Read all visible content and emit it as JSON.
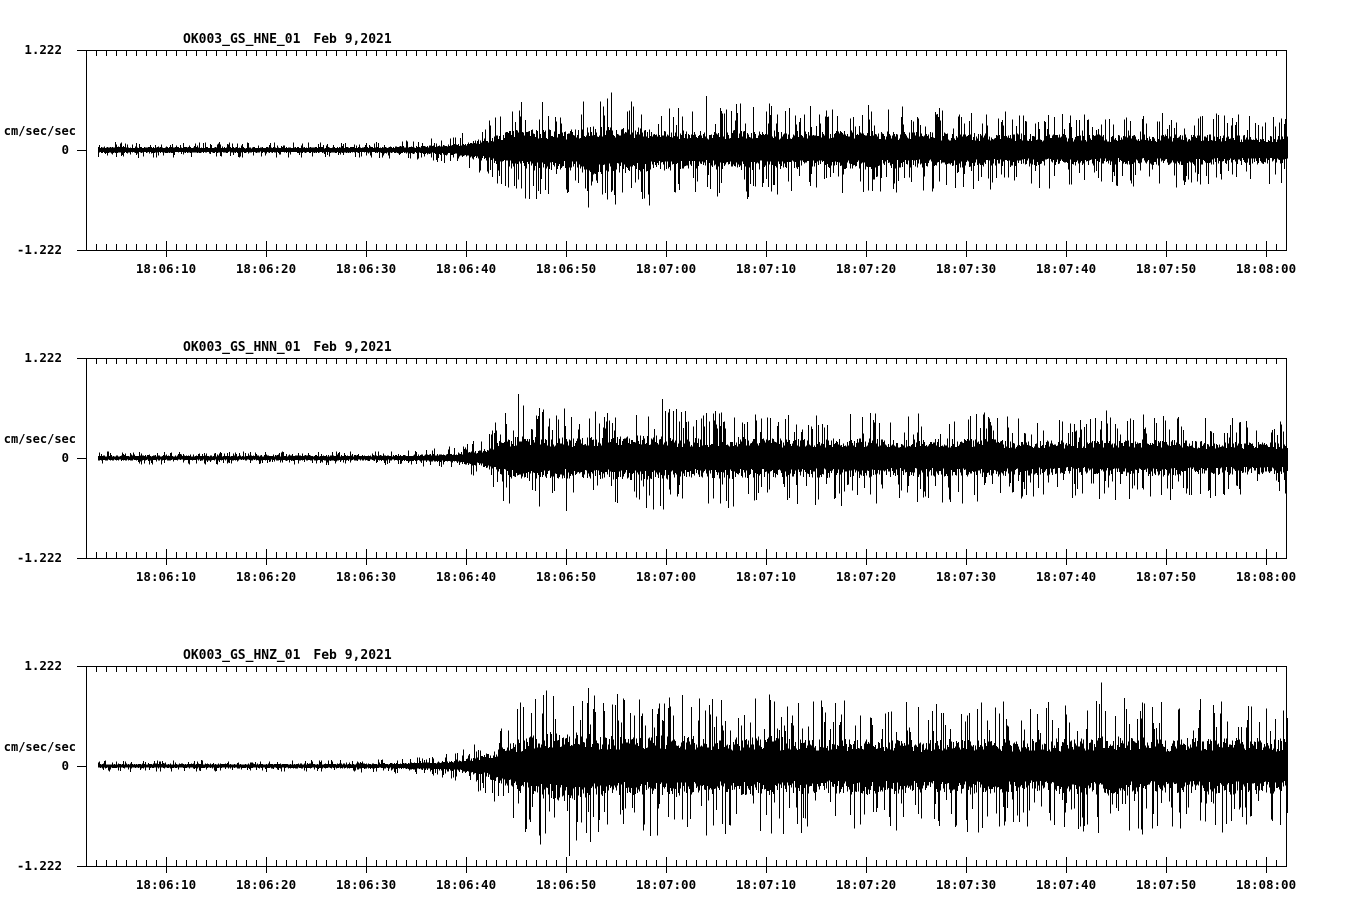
{
  "page": {
    "background": "#ffffff",
    "trace_color": "#000000",
    "text_color": "#000000"
  },
  "chart_data": [
    {
      "type": "line",
      "title": "OK003_GS_HNE_01",
      "date": "Feb 9,2021",
      "ylabel": "cm/sec/sec",
      "y_ticks": [
        "1.222",
        "0",
        "-1.222"
      ],
      "ylim": [
        -1.222,
        1.222
      ],
      "x_start_time": "18:06:02",
      "x_end_time": "18:08:02",
      "x_tick_labels": [
        "18:06:10",
        "18:06:20",
        "18:06:30",
        "18:06:40",
        "18:06:50",
        "18:07:00",
        "18:07:10",
        "18:07:20",
        "18:07:30",
        "18:07:40",
        "18:07:50",
        "18:08:00"
      ],
      "x_first_tick_offset_sec": 8,
      "x_tick_interval_sec": 10,
      "minor_tick_sec": 1,
      "grid": false,
      "envelope_cm_s2": [
        [
          0,
          0.1
        ],
        [
          15,
          0.095
        ],
        [
          28,
          0.095
        ],
        [
          33,
          0.12
        ],
        [
          37,
          0.18
        ],
        [
          40,
          0.35
        ],
        [
          42,
          0.55
        ],
        [
          44,
          0.62
        ],
        [
          48,
          0.58
        ],
        [
          51,
          0.72
        ],
        [
          54,
          0.68
        ],
        [
          57,
          0.62
        ],
        [
          61,
          0.55
        ],
        [
          66,
          0.6
        ],
        [
          72,
          0.55
        ],
        [
          78,
          0.57
        ],
        [
          84,
          0.52
        ],
        [
          90,
          0.5
        ],
        [
          97,
          0.47
        ],
        [
          104,
          0.44
        ],
        [
          110,
          0.47
        ],
        [
          115,
          0.44
        ],
        [
          120,
          0.42
        ]
      ],
      "notable_spikes": [
        {
          "t": 52.5,
          "amp": 0.7
        },
        {
          "t": 50.2,
          "amp": -0.7
        },
        {
          "t": 62.0,
          "amp": 0.66
        },
        {
          "t": 56.3,
          "amp": -0.68
        }
      ]
    },
    {
      "type": "line",
      "title": "OK003_GS_HNN_01",
      "date": "Feb 9,2021",
      "ylabel": "cm/sec/sec",
      "y_ticks": [
        "1.222",
        "0",
        "-1.222"
      ],
      "ylim": [
        -1.222,
        1.222
      ],
      "x_start_time": "18:06:02",
      "x_end_time": "18:08:02",
      "x_tick_labels": [
        "18:06:10",
        "18:06:20",
        "18:06:30",
        "18:06:40",
        "18:06:50",
        "18:07:00",
        "18:07:10",
        "18:07:20",
        "18:07:30",
        "18:07:40",
        "18:07:50",
        "18:08:00"
      ],
      "x_first_tick_offset_sec": 8,
      "x_tick_interval_sec": 10,
      "minor_tick_sec": 1,
      "grid": false,
      "envelope_cm_s2": [
        [
          0,
          0.085
        ],
        [
          15,
          0.08
        ],
        [
          28,
          0.085
        ],
        [
          33,
          0.1
        ],
        [
          37,
          0.15
        ],
        [
          40,
          0.3
        ],
        [
          42,
          0.6
        ],
        [
          44,
          0.7
        ],
        [
          47,
          0.6
        ],
        [
          52,
          0.62
        ],
        [
          56,
          0.68
        ],
        [
          60,
          0.58
        ],
        [
          65,
          0.62
        ],
        [
          70,
          0.56
        ],
        [
          76,
          0.6
        ],
        [
          82,
          0.54
        ],
        [
          88,
          0.58
        ],
        [
          94,
          0.52
        ],
        [
          100,
          0.5
        ],
        [
          106,
          0.55
        ],
        [
          112,
          0.5
        ],
        [
          120,
          0.48
        ]
      ],
      "notable_spikes": [
        {
          "t": 43.2,
          "amp": 0.78
        },
        {
          "t": 57.6,
          "amp": 0.72
        },
        {
          "t": 48.0,
          "amp": -0.65
        },
        {
          "t": 102.0,
          "amp": 0.58
        }
      ]
    },
    {
      "type": "line",
      "title": "OK003_GS_HNZ_01",
      "date": "Feb 9,2021",
      "ylabel": "cm/sec/sec",
      "y_ticks": [
        "1.222",
        "0",
        "-1.222"
      ],
      "ylim": [
        -1.222,
        1.222
      ],
      "x_start_time": "18:06:02",
      "x_end_time": "18:08:02",
      "x_tick_labels": [
        "18:06:10",
        "18:06:20",
        "18:06:30",
        "18:06:40",
        "18:06:50",
        "18:07:00",
        "18:07:10",
        "18:07:20",
        "18:07:30",
        "18:07:40",
        "18:07:50",
        "18:08:00"
      ],
      "x_first_tick_offset_sec": 8,
      "x_tick_interval_sec": 10,
      "minor_tick_sec": 1,
      "grid": false,
      "envelope_cm_s2": [
        [
          0,
          0.075
        ],
        [
          15,
          0.07
        ],
        [
          25,
          0.075
        ],
        [
          31,
          0.09
        ],
        [
          35,
          0.13
        ],
        [
          38,
          0.22
        ],
        [
          41,
          0.45
        ],
        [
          43,
          0.75
        ],
        [
          45,
          0.95
        ],
        [
          48,
          1.05
        ],
        [
          51,
          0.92
        ],
        [
          55,
          0.85
        ],
        [
          59,
          0.92
        ],
        [
          63,
          0.82
        ],
        [
          68,
          0.88
        ],
        [
          73,
          0.8
        ],
        [
          78,
          0.86
        ],
        [
          83,
          0.78
        ],
        [
          88,
          0.84
        ],
        [
          93,
          0.78
        ],
        [
          98,
          0.82
        ],
        [
          103,
          0.88
        ],
        [
          108,
          0.8
        ],
        [
          113,
          0.85
        ],
        [
          120,
          0.8
        ]
      ],
      "notable_spikes": [
        {
          "t": 48.3,
          "amp": -1.1
        },
        {
          "t": 46.0,
          "amp": 0.92
        },
        {
          "t": 101.5,
          "amp": 1.02
        },
        {
          "t": 62.0,
          "amp": -0.85
        }
      ]
    }
  ]
}
